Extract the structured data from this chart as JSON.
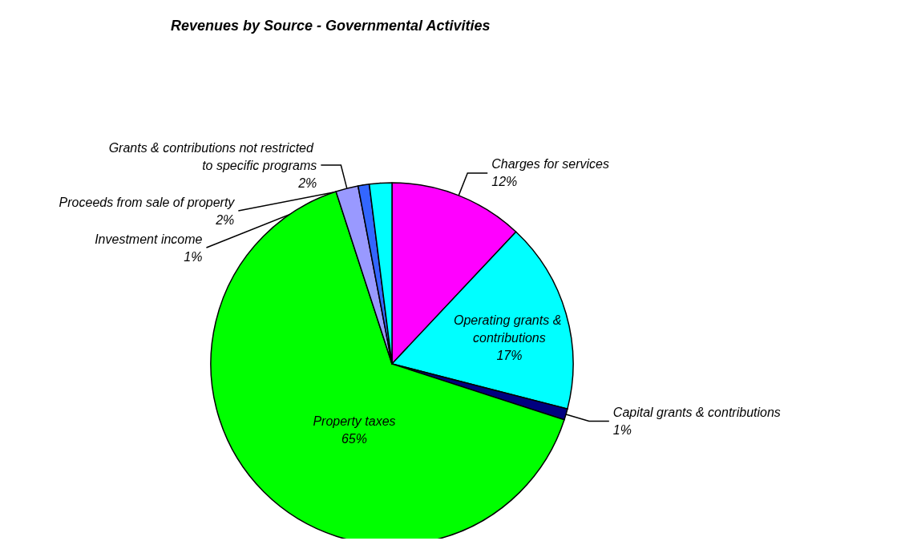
{
  "chart_data": {
    "type": "pie",
    "title": "Revenues by Source - Governmental Activities",
    "categories": [
      "Charges for services",
      "Operating grants & contributions",
      "Capital grants & contributions",
      "Property taxes",
      "Grants & contributions not restricted to specific programs",
      "Investment income",
      "Proceeds from sale of property"
    ],
    "values": [
      12,
      17,
      1,
      65,
      2,
      1,
      2
    ],
    "value_labels": [
      "12%",
      "17%",
      "1%",
      "65%",
      "2%",
      "1%",
      "2%"
    ],
    "colors": [
      "#ff00ff",
      "#00ffff",
      "#000080",
      "#00ff00",
      "#9999ff",
      "#3366ff",
      "#00ffff"
    ],
    "legend": false
  }
}
